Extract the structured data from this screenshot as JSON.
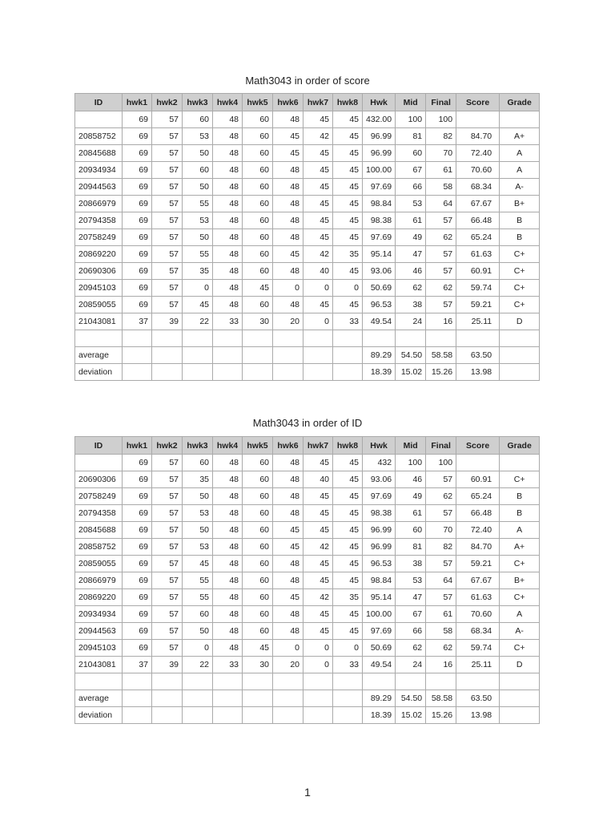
{
  "tables": [
    {
      "title": "Math3043 in order of score",
      "headers": [
        "ID",
        "hwk1",
        "hwk2",
        "hwk3",
        "hwk4",
        "hwk5",
        "hwk6",
        "hwk7",
        "hwk8",
        "Hwk",
        "Mid",
        "Final",
        "Score",
        "Grade"
      ],
      "rows": [
        [
          "",
          "69",
          "57",
          "60",
          "48",
          "60",
          "48",
          "45",
          "45",
          "432.00",
          "100",
          "100",
          "",
          ""
        ],
        [
          "20858752",
          "69",
          "57",
          "53",
          "48",
          "60",
          "45",
          "42",
          "45",
          "96.99",
          "81",
          "82",
          "84.70",
          "A+"
        ],
        [
          "20845688",
          "69",
          "57",
          "50",
          "48",
          "60",
          "45",
          "45",
          "45",
          "96.99",
          "60",
          "70",
          "72.40",
          "A"
        ],
        [
          "20934934",
          "69",
          "57",
          "60",
          "48",
          "60",
          "48",
          "45",
          "45",
          "100.00",
          "67",
          "61",
          "70.60",
          "A"
        ],
        [
          "20944563",
          "69",
          "57",
          "50",
          "48",
          "60",
          "48",
          "45",
          "45",
          "97.69",
          "66",
          "58",
          "68.34",
          "A-"
        ],
        [
          "20866979",
          "69",
          "57",
          "55",
          "48",
          "60",
          "48",
          "45",
          "45",
          "98.84",
          "53",
          "64",
          "67.67",
          "B+"
        ],
        [
          "20794358",
          "69",
          "57",
          "53",
          "48",
          "60",
          "48",
          "45",
          "45",
          "98.38",
          "61",
          "57",
          "66.48",
          "B"
        ],
        [
          "20758249",
          "69",
          "57",
          "50",
          "48",
          "60",
          "48",
          "45",
          "45",
          "97.69",
          "49",
          "62",
          "65.24",
          "B"
        ],
        [
          "20869220",
          "69",
          "57",
          "55",
          "48",
          "60",
          "45",
          "42",
          "35",
          "95.14",
          "47",
          "57",
          "61.63",
          "C+"
        ],
        [
          "20690306",
          "69",
          "57",
          "35",
          "48",
          "60",
          "48",
          "40",
          "45",
          "93.06",
          "46",
          "57",
          "60.91",
          "C+"
        ],
        [
          "20945103",
          "69",
          "57",
          "0",
          "48",
          "45",
          "0",
          "0",
          "0",
          "50.69",
          "62",
          "62",
          "59.74",
          "C+"
        ],
        [
          "20859055",
          "69",
          "57",
          "45",
          "48",
          "60",
          "48",
          "45",
          "45",
          "96.53",
          "38",
          "57",
          "59.21",
          "C+"
        ],
        [
          "21043081",
          "37",
          "39",
          "22",
          "33",
          "30",
          "20",
          "0",
          "33",
          "49.54",
          "24",
          "16",
          "25.11",
          "D"
        ],
        [
          "",
          "",
          "",
          "",
          "",
          "",
          "",
          "",
          "",
          "",
          "",
          "",
          "",
          ""
        ],
        [
          "average",
          "",
          "",
          "",
          "",
          "",
          "",
          "",
          "",
          "89.29",
          "54.50",
          "58.58",
          "63.50",
          ""
        ],
        [
          "deviation",
          "",
          "",
          "",
          "",
          "",
          "",
          "",
          "",
          "18.39",
          "15.02",
          "15.26",
          "13.98",
          ""
        ]
      ]
    },
    {
      "title": "Math3043 in order of ID",
      "headers": [
        "ID",
        "hwk1",
        "hwk2",
        "hwk3",
        "hwk4",
        "hwk5",
        "hwk6",
        "hwk7",
        "hwk8",
        "Hwk",
        "Mid",
        "Final",
        "Score",
        "Grade"
      ],
      "rows": [
        [
          "",
          "69",
          "57",
          "60",
          "48",
          "60",
          "48",
          "45",
          "45",
          "432",
          "100",
          "100",
          "",
          ""
        ],
        [
          "20690306",
          "69",
          "57",
          "35",
          "48",
          "60",
          "48",
          "40",
          "45",
          "93.06",
          "46",
          "57",
          "60.91",
          "C+"
        ],
        [
          "20758249",
          "69",
          "57",
          "50",
          "48",
          "60",
          "48",
          "45",
          "45",
          "97.69",
          "49",
          "62",
          "65.24",
          "B"
        ],
        [
          "20794358",
          "69",
          "57",
          "53",
          "48",
          "60",
          "48",
          "45",
          "45",
          "98.38",
          "61",
          "57",
          "66.48",
          "B"
        ],
        [
          "20845688",
          "69",
          "57",
          "50",
          "48",
          "60",
          "45",
          "45",
          "45",
          "96.99",
          "60",
          "70",
          "72.40",
          "A"
        ],
        [
          "20858752",
          "69",
          "57",
          "53",
          "48",
          "60",
          "45",
          "42",
          "45",
          "96.99",
          "81",
          "82",
          "84.70",
          "A+"
        ],
        [
          "20859055",
          "69",
          "57",
          "45",
          "48",
          "60",
          "48",
          "45",
          "45",
          "96.53",
          "38",
          "57",
          "59.21",
          "C+"
        ],
        [
          "20866979",
          "69",
          "57",
          "55",
          "48",
          "60",
          "48",
          "45",
          "45",
          "98.84",
          "53",
          "64",
          "67.67",
          "B+"
        ],
        [
          "20869220",
          "69",
          "57",
          "55",
          "48",
          "60",
          "45",
          "42",
          "35",
          "95.14",
          "47",
          "57",
          "61.63",
          "C+"
        ],
        [
          "20934934",
          "69",
          "57",
          "60",
          "48",
          "60",
          "48",
          "45",
          "45",
          "100.00",
          "67",
          "61",
          "70.60",
          "A"
        ],
        [
          "20944563",
          "69",
          "57",
          "50",
          "48",
          "60",
          "48",
          "45",
          "45",
          "97.69",
          "66",
          "58",
          "68.34",
          "A-"
        ],
        [
          "20945103",
          "69",
          "57",
          "0",
          "48",
          "45",
          "0",
          "0",
          "0",
          "50.69",
          "62",
          "62",
          "59.74",
          "C+"
        ],
        [
          "21043081",
          "37",
          "39",
          "22",
          "33",
          "30",
          "20",
          "0",
          "33",
          "49.54",
          "24",
          "16",
          "25.11",
          "D"
        ],
        [
          "",
          "",
          "",
          "",
          "",
          "",
          "",
          "",
          "",
          "",
          "",
          "",
          "",
          ""
        ],
        [
          "average",
          "",
          "",
          "",
          "",
          "",
          "",
          "",
          "",
          "89.29",
          "54.50",
          "58.58",
          "63.50",
          ""
        ],
        [
          "deviation",
          "",
          "",
          "",
          "",
          "",
          "",
          "",
          "",
          "18.39",
          "15.02",
          "15.26",
          "13.98",
          ""
        ]
      ]
    }
  ],
  "page_number": "1"
}
